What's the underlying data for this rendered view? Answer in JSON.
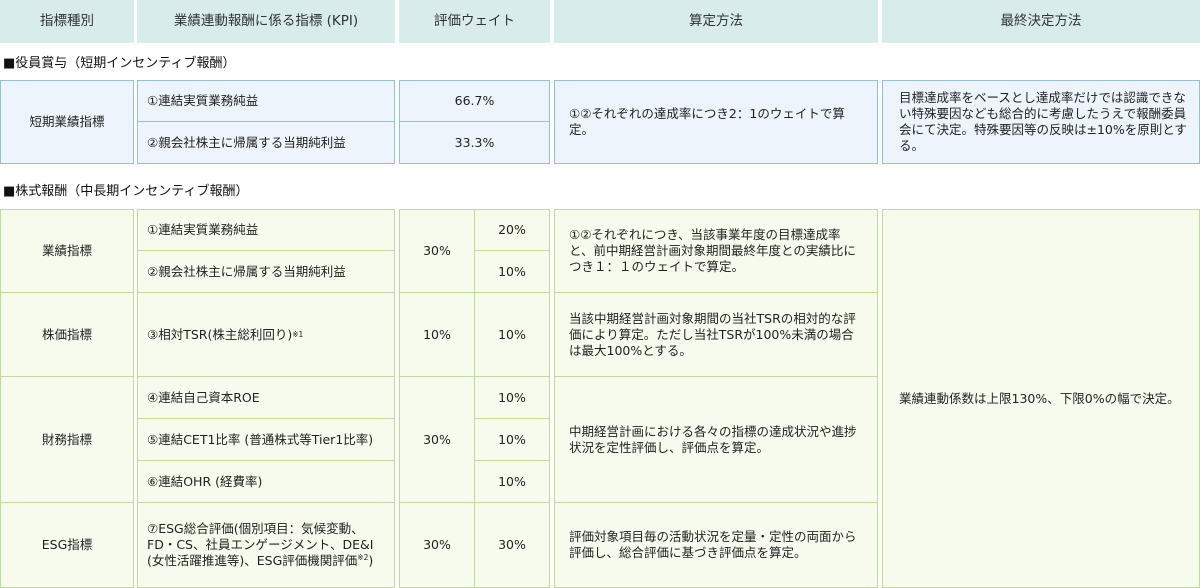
{
  "headers": [
    "指標種別",
    "業績連動報酬に係る指標 (KPI)",
    "評価ウェイト",
    "算定方法",
    "最終決定方法"
  ],
  "section1": {
    "title": "■役員賞与（短期インセンティブ報酬）",
    "category": "短期業績指標",
    "kpi1": "①連結実質業務純益",
    "kpi2": "②親会社株主に帰属する当期純利益",
    "weight1": "66.7%",
    "weight2": "33.3%",
    "method": "①②それぞれの達成率につき2：1のウェイトで算定。",
    "final": "目標達成率をベースとし達成率だけでは認識できない特殊要因なども総合的に考慮したうえで報酬委員会にて決定。特殊要因等の反映は±10%を原則とする。"
  },
  "section2": {
    "title": "■株式報酬（中長期インセンティブ報酬）",
    "cat_perf": "業績指標",
    "cat_stock": "株価指標",
    "cat_fin": "財務指標",
    "cat_esg": "ESG指標",
    "kpi1": "①連結実質業務純益",
    "kpi2": "②親会社株主に帰属する当期純利益",
    "kpi3": "③相対TSR(株主総利回り)",
    "kpi3_note": "※1",
    "kpi4": "④連結自己資本ROE",
    "kpi5": "⑤連結CET1比率 (普通株式等Tier1比率)",
    "kpi6": "⑥連結OHR (経費率)",
    "kpi7": "⑦ESG総合評価(個別項目：気候変動、FD・CS、社員エンゲージメント、DE&I (女性活躍推進等)、ESG評価機関評価",
    "kpi7_note": "※2",
    "kpi7_close": ")",
    "w_perf": "30%",
    "w1": "20%",
    "w2": "10%",
    "w_stock": "10%",
    "w3": "10%",
    "w_fin": "30%",
    "w4": "10%",
    "w5": "10%",
    "w6": "10%",
    "w_esg": "30%",
    "w7": "30%",
    "m_perf": "①②それぞれにつき、当該事業年度の目標達成率と、前中期経営計画対象期間最終年度との実績比につき１：１のウェイトで算定。",
    "m_stock": "当該中期経営計画対象期間の当社TSRの相対的な評価により算定。ただし当社TSRが100%未満の場合は最大100%とする。",
    "m_fin": "中期経営計画における各々の指標の達成状況や進捗状況を定性評価し、評価点を算定。",
    "m_esg": "評価対象項目毎の活動状況を定量・定性の両面から評価し、総合評価に基づき評価点を算定。",
    "final": "業績連動係数は上限130%、下限0%の幅で決定。"
  }
}
